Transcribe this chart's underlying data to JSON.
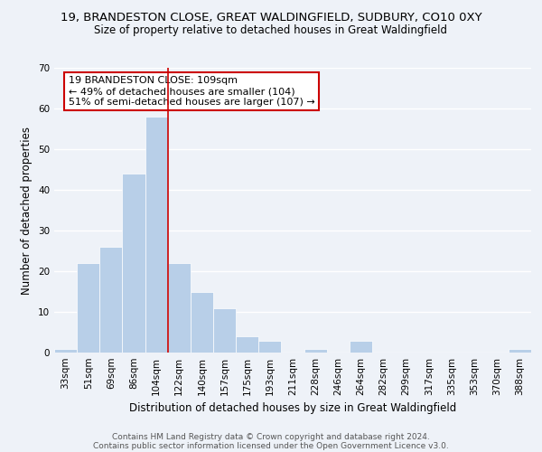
{
  "title_line1": "19, BRANDESTON CLOSE, GREAT WALDINGFIELD, SUDBURY, CO10 0XY",
  "title_line2": "Size of property relative to detached houses in Great Waldingfield",
  "xlabel": "Distribution of detached houses by size in Great Waldingfield",
  "ylabel": "Number of detached properties",
  "bin_labels": [
    "33sqm",
    "51sqm",
    "69sqm",
    "86sqm",
    "104sqm",
    "122sqm",
    "140sqm",
    "157sqm",
    "175sqm",
    "193sqm",
    "211sqm",
    "228sqm",
    "246sqm",
    "264sqm",
    "282sqm",
    "299sqm",
    "317sqm",
    "335sqm",
    "353sqm",
    "370sqm",
    "388sqm"
  ],
  "bar_values": [
    1,
    22,
    26,
    44,
    58,
    22,
    15,
    11,
    4,
    3,
    0,
    1,
    0,
    3,
    0,
    0,
    0,
    0,
    0,
    0,
    1
  ],
  "bar_color": "#b8cfe8",
  "vline_index": 4,
  "vline_color": "#cc0000",
  "ylim": [
    0,
    70
  ],
  "yticks": [
    0,
    10,
    20,
    30,
    40,
    50,
    60,
    70
  ],
  "annotation_title": "19 BRANDESTON CLOSE: 109sqm",
  "annotation_line1": "← 49% of detached houses are smaller (104)",
  "annotation_line2": "51% of semi-detached houses are larger (107) →",
  "annotation_box_color": "#ffffff",
  "annotation_box_edge": "#cc0000",
  "footer_line1": "Contains HM Land Registry data © Crown copyright and database right 2024.",
  "footer_line2": "Contains public sector information licensed under the Open Government Licence v3.0.",
  "background_color": "#eef2f8",
  "grid_color": "#ffffff",
  "title_fontsize": 9.5,
  "subtitle_fontsize": 8.5,
  "axis_label_fontsize": 8.5,
  "tick_fontsize": 7.5,
  "annotation_fontsize": 8,
  "footer_fontsize": 6.5
}
